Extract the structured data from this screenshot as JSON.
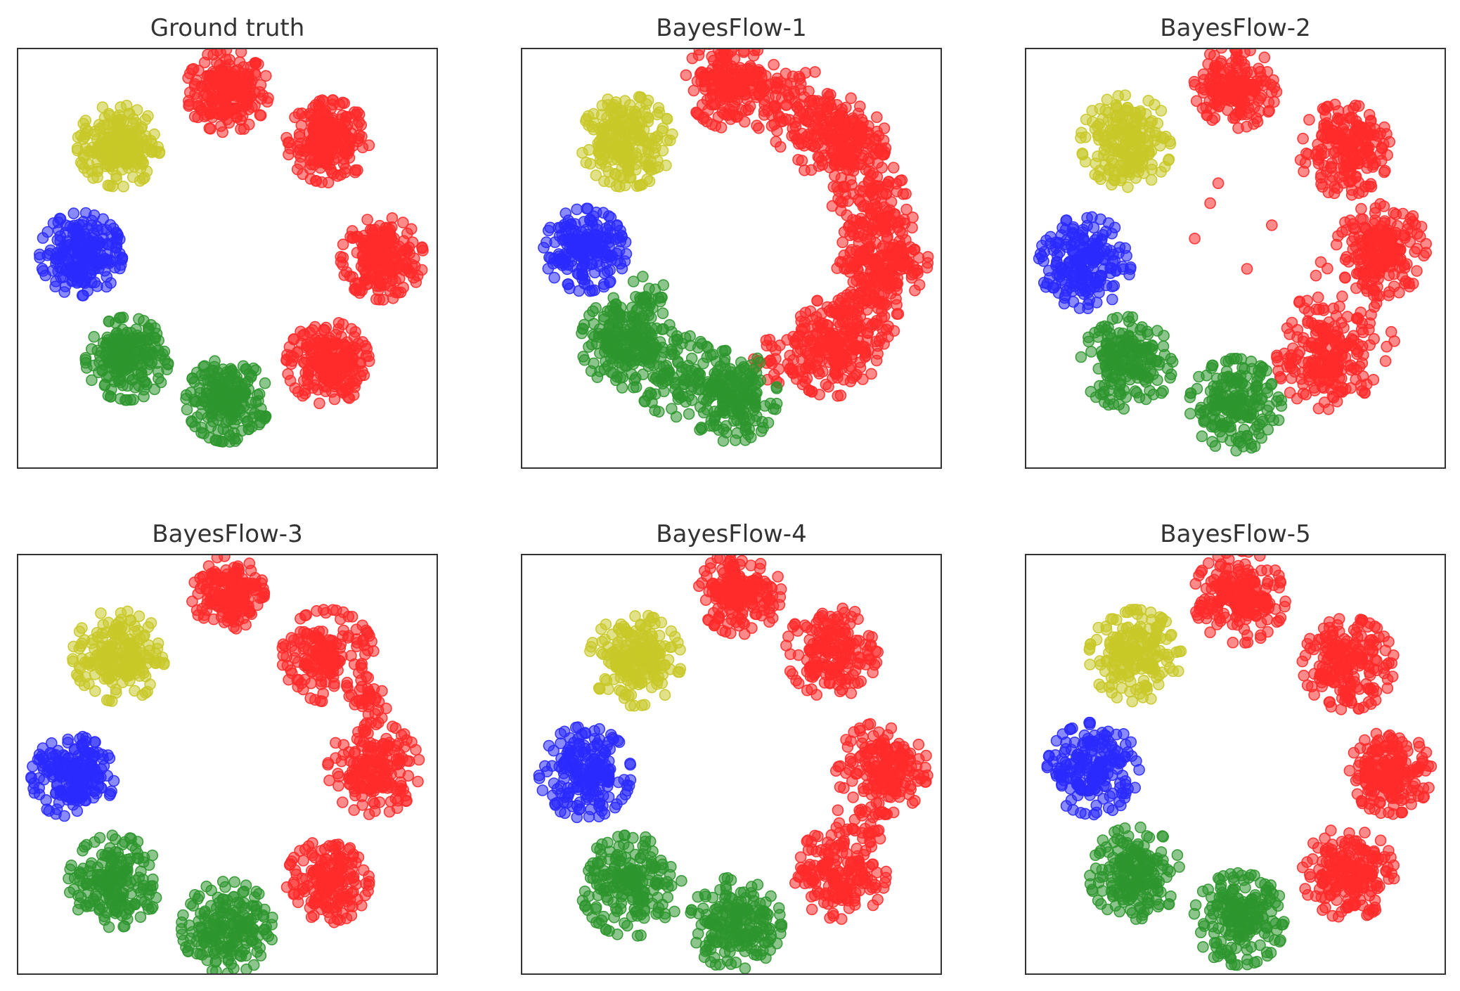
{
  "chart_data": [
    {
      "type": "scatter",
      "title": "Ground truth",
      "xlim": [
        -5,
        5
      ],
      "ylim": [
        -5,
        5
      ],
      "grid": false,
      "clusters": [
        {
          "color": "red",
          "center": [
            0.0,
            4.0
          ],
          "spread": 0.45,
          "n": 220
        },
        {
          "color": "red",
          "center": [
            2.4,
            2.8
          ],
          "spread": 0.45,
          "n": 220
        },
        {
          "color": "red",
          "center": [
            3.7,
            0.0
          ],
          "spread": 0.45,
          "n": 220
        },
        {
          "color": "red",
          "center": [
            2.4,
            -2.5
          ],
          "spread": 0.45,
          "n": 220
        },
        {
          "color": "green",
          "center": [
            0.0,
            -3.4
          ],
          "spread": 0.45,
          "n": 220
        },
        {
          "color": "green",
          "center": [
            -2.4,
            -2.4
          ],
          "spread": 0.45,
          "n": 220
        },
        {
          "color": "blue",
          "center": [
            -3.5,
            0.1
          ],
          "spread": 0.45,
          "n": 220
        },
        {
          "color": "yellow",
          "center": [
            -2.6,
            2.7
          ],
          "spread": 0.45,
          "n": 220
        }
      ]
    },
    {
      "type": "scatter",
      "title": "BayesFlow-1",
      "xlim": [
        -5,
        5
      ],
      "ylim": [
        -5,
        5
      ],
      "grid": false,
      "clusters": [
        {
          "color": "red",
          "center": [
            0.0,
            4.2
          ],
          "spread": 0.5,
          "n": 200
        },
        {
          "color": "red",
          "center": [
            1.5,
            3.6
          ],
          "spread": 0.45,
          "n": 80
        },
        {
          "color": "red",
          "center": [
            2.6,
            2.8
          ],
          "spread": 0.5,
          "n": 200
        },
        {
          "color": "red",
          "center": [
            3.4,
            1.3
          ],
          "spread": 0.45,
          "n": 90
        },
        {
          "color": "red",
          "center": [
            3.6,
            0.0
          ],
          "spread": 0.5,
          "n": 200
        },
        {
          "color": "red",
          "center": [
            3.0,
            -1.3
          ],
          "spread": 0.45,
          "n": 90
        },
        {
          "color": "red",
          "center": [
            2.4,
            -2.2
          ],
          "spread": 0.5,
          "n": 200
        },
        {
          "color": "red",
          "center": [
            1.0,
            -2.6
          ],
          "spread": 0.3,
          "n": 20
        },
        {
          "color": "green",
          "center": [
            0.0,
            -3.3
          ],
          "spread": 0.5,
          "n": 200
        },
        {
          "color": "green",
          "center": [
            -1.3,
            -2.8
          ],
          "spread": 0.45,
          "n": 90
        },
        {
          "color": "green",
          "center": [
            -2.5,
            -2.0
          ],
          "spread": 0.5,
          "n": 220
        },
        {
          "color": "green",
          "center": [
            -2.1,
            -0.9
          ],
          "spread": 0.35,
          "n": 20
        },
        {
          "color": "blue",
          "center": [
            -3.5,
            0.2
          ],
          "spread": 0.45,
          "n": 200
        },
        {
          "color": "yellow",
          "center": [
            -2.5,
            2.8
          ],
          "spread": 0.5,
          "n": 220
        }
      ]
    },
    {
      "type": "scatter",
      "title": "BayesFlow-2",
      "xlim": [
        -5,
        5
      ],
      "ylim": [
        -5,
        5
      ],
      "grid": false,
      "clusters": [
        {
          "color": "red",
          "center": [
            0.0,
            4.1
          ],
          "spread": 0.45,
          "n": 180
        },
        {
          "color": "red",
          "center": [
            2.6,
            2.6
          ],
          "spread": 0.5,
          "n": 200
        },
        {
          "color": "red",
          "center": [
            3.5,
            0.2
          ],
          "spread": 0.5,
          "n": 200
        },
        {
          "color": "red",
          "center": [
            2.2,
            -2.4
          ],
          "spread": 0.55,
          "n": 200
        },
        {
          "color": "red",
          "center": [
            2.8,
            -1.4
          ],
          "spread": 0.6,
          "n": 40
        },
        {
          "color": "red",
          "center": [
            0.5,
            1.0
          ],
          "spread": 1.2,
          "n": 8
        },
        {
          "color": "green",
          "center": [
            0.0,
            -3.5
          ],
          "spread": 0.5,
          "n": 200
        },
        {
          "color": "green",
          "center": [
            -2.6,
            -2.5
          ],
          "spread": 0.5,
          "n": 200
        },
        {
          "color": "blue",
          "center": [
            -3.6,
            -0.1
          ],
          "spread": 0.5,
          "n": 200
        },
        {
          "color": "yellow",
          "center": [
            -2.6,
            2.8
          ],
          "spread": 0.5,
          "n": 200
        }
      ]
    },
    {
      "type": "scatter",
      "title": "BayesFlow-3",
      "xlim": [
        -5,
        5
      ],
      "ylim": [
        -5,
        5
      ],
      "grid": false,
      "clusters": [
        {
          "color": "red",
          "center": [
            0.0,
            4.1
          ],
          "spread": 0.4,
          "n": 180
        },
        {
          "color": "red",
          "center": [
            2.4,
            2.6
          ],
          "spread": 0.5,
          "n": 180
        },
        {
          "color": "red",
          "center": [
            3.5,
            -0.1
          ],
          "spread": 0.5,
          "n": 180
        },
        {
          "color": "red",
          "center": [
            3.4,
            1.4
          ],
          "spread": 0.3,
          "n": 30
        },
        {
          "color": "red",
          "center": [
            2.4,
            -2.8
          ],
          "spread": 0.45,
          "n": 180
        },
        {
          "color": "green",
          "center": [
            0.0,
            -3.9
          ],
          "spread": 0.5,
          "n": 200
        },
        {
          "color": "green",
          "center": [
            -2.7,
            -2.8
          ],
          "spread": 0.5,
          "n": 200
        },
        {
          "color": "blue",
          "center": [
            -3.7,
            -0.3
          ],
          "spread": 0.45,
          "n": 200
        },
        {
          "color": "yellow",
          "center": [
            -2.6,
            2.6
          ],
          "spread": 0.5,
          "n": 200
        }
      ]
    },
    {
      "type": "scatter",
      "title": "BayesFlow-4",
      "xlim": [
        -5,
        5
      ],
      "ylim": [
        -5,
        5
      ],
      "grid": false,
      "clusters": [
        {
          "color": "red",
          "center": [
            0.2,
            4.1
          ],
          "spread": 0.45,
          "n": 180
        },
        {
          "color": "red",
          "center": [
            2.4,
            2.7
          ],
          "spread": 0.5,
          "n": 180
        },
        {
          "color": "red",
          "center": [
            3.6,
            -0.1
          ],
          "spread": 0.5,
          "n": 180
        },
        {
          "color": "red",
          "center": [
            3.1,
            -1.3
          ],
          "spread": 0.3,
          "n": 25
        },
        {
          "color": "red",
          "center": [
            2.6,
            -2.6
          ],
          "spread": 0.5,
          "n": 180
        },
        {
          "color": "green",
          "center": [
            0.1,
            -3.8
          ],
          "spread": 0.5,
          "n": 200
        },
        {
          "color": "green",
          "center": [
            -2.4,
            -2.9
          ],
          "spread": 0.55,
          "n": 200
        },
        {
          "color": "blue",
          "center": [
            -3.5,
            -0.2
          ],
          "spread": 0.5,
          "n": 200
        },
        {
          "color": "yellow",
          "center": [
            -2.3,
            2.5
          ],
          "spread": 0.5,
          "n": 200
        }
      ]
    },
    {
      "type": "scatter",
      "title": "BayesFlow-5",
      "xlim": [
        -5,
        5
      ],
      "ylim": [
        -5,
        5
      ],
      "grid": false,
      "clusters": [
        {
          "color": "red",
          "center": [
            0.1,
            4.0
          ],
          "spread": 0.5,
          "n": 200
        },
        {
          "color": "red",
          "center": [
            2.7,
            2.4
          ],
          "spread": 0.5,
          "n": 200
        },
        {
          "color": "red",
          "center": [
            3.7,
            -0.2
          ],
          "spread": 0.45,
          "n": 200
        },
        {
          "color": "red",
          "center": [
            2.7,
            -2.6
          ],
          "spread": 0.5,
          "n": 200
        },
        {
          "color": "green",
          "center": [
            0.1,
            -3.7
          ],
          "spread": 0.5,
          "n": 200
        },
        {
          "color": "green",
          "center": [
            -2.4,
            -2.6
          ],
          "spread": 0.5,
          "n": 200
        },
        {
          "color": "blue",
          "center": [
            -3.4,
            -0.1
          ],
          "spread": 0.5,
          "n": 200
        },
        {
          "color": "yellow",
          "center": [
            -2.4,
            2.6
          ],
          "spread": 0.5,
          "n": 200
        }
      ]
    }
  ],
  "colors": {
    "red": "#ff2a2a",
    "green": "#2e962e",
    "blue": "#2a2aff",
    "yellow": "#c8c828",
    "frame": "#333333",
    "title": "#333333"
  }
}
